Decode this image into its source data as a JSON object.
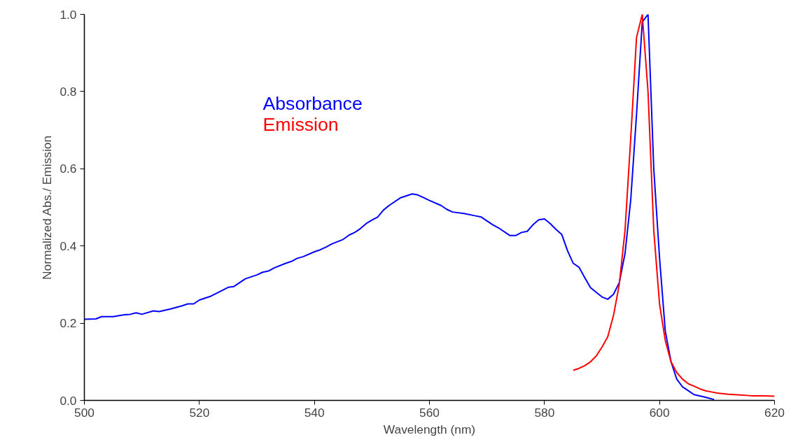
{
  "chart_data": {
    "type": "line",
    "xlabel": "Wavelength (nm)",
    "ylabel": "Normalized Abs./ Emission",
    "xlim": [
      500,
      620
    ],
    "ylim": [
      0,
      1.0
    ],
    "xticks": [
      500,
      520,
      540,
      560,
      580,
      600,
      620
    ],
    "yticks": [
      {
        "value": 0,
        "label": "0.0"
      },
      0.2,
      0.4,
      0.6,
      0.8,
      {
        "value": 1.0,
        "label": "1.0"
      }
    ],
    "grid": false,
    "series": [
      {
        "name": "Absorbance",
        "color": "#0000ff",
        "x": [
          500,
          502,
          503,
          505,
          507,
          508,
          509,
          510,
          512,
          513,
          515,
          517,
          518,
          519,
          520,
          522,
          524,
          525,
          526,
          527,
          528,
          530,
          531,
          532,
          533,
          535,
          536,
          537,
          538,
          540,
          541,
          542,
          543,
          545,
          546,
          547,
          548,
          549,
          550,
          551,
          552,
          553,
          555,
          557,
          558,
          559,
          560,
          562,
          563,
          564,
          566,
          568,
          569,
          570,
          571,
          572,
          574,
          575,
          576,
          577,
          578,
          579,
          580,
          581,
          582,
          583,
          584,
          585,
          586,
          587,
          588,
          589,
          590,
          591,
          592,
          593,
          594,
          595,
          596,
          597,
          598,
          599,
          600,
          601,
          602,
          603,
          604,
          605,
          606,
          608,
          609.5
        ],
        "values": [
          0.21,
          0.211,
          0.217,
          0.217,
          0.222,
          0.223,
          0.227,
          0.223,
          0.232,
          0.23,
          0.237,
          0.245,
          0.25,
          0.25,
          0.26,
          0.27,
          0.285,
          0.293,
          0.295,
          0.305,
          0.315,
          0.325,
          0.332,
          0.335,
          0.343,
          0.355,
          0.36,
          0.368,
          0.372,
          0.385,
          0.39,
          0.397,
          0.405,
          0.417,
          0.428,
          0.435,
          0.445,
          0.458,
          0.467,
          0.475,
          0.493,
          0.505,
          0.525,
          0.535,
          0.532,
          0.525,
          0.518,
          0.505,
          0.495,
          0.488,
          0.484,
          0.478,
          0.475,
          0.465,
          0.455,
          0.447,
          0.427,
          0.427,
          0.435,
          0.438,
          0.455,
          0.468,
          0.47,
          0.458,
          0.443,
          0.43,
          0.388,
          0.355,
          0.345,
          0.318,
          0.292,
          0.28,
          0.268,
          0.262,
          0.275,
          0.305,
          0.38,
          0.52,
          0.74,
          0.98,
          1.0,
          0.6,
          0.37,
          0.18,
          0.1,
          0.055,
          0.035,
          0.025,
          0.015,
          0.008,
          0.002
        ]
      },
      {
        "name": "Emission",
        "color": "#ff0000",
        "x": [
          585,
          586,
          587,
          588,
          589,
          590,
          591,
          592,
          593,
          594,
          595,
          596,
          597,
          598,
          599,
          600,
          601,
          602,
          603,
          604,
          605,
          606,
          607,
          608,
          609,
          610,
          612,
          614,
          616,
          618,
          620
        ],
        "values": [
          0.078,
          0.083,
          0.09,
          0.1,
          0.115,
          0.138,
          0.165,
          0.22,
          0.3,
          0.44,
          0.68,
          0.94,
          1.0,
          0.8,
          0.44,
          0.25,
          0.155,
          0.1,
          0.072,
          0.055,
          0.043,
          0.037,
          0.03,
          0.025,
          0.022,
          0.019,
          0.016,
          0.014,
          0.012,
          0.012,
          0.011
        ]
      }
    ]
  }
}
